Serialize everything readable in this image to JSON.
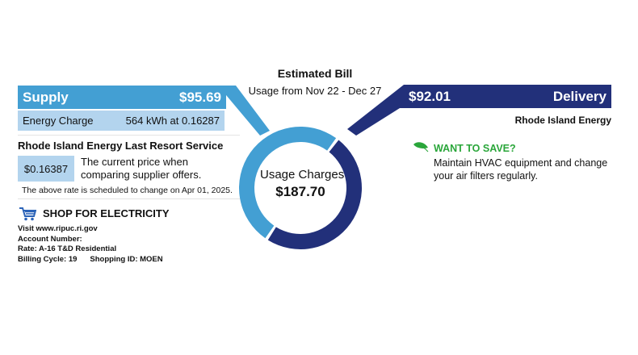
{
  "header": {
    "title": "Estimated Bill",
    "subtitle": "Usage from Nov 22 - Dec 27"
  },
  "supply": {
    "label": "Supply",
    "amount": "$95.69",
    "value": 95.69,
    "color": "#439fd3",
    "energy_charge_label": "Energy Charge",
    "energy_charge_value": "564 kWh at 0.16287",
    "last_resort_title": "Rhode Island Energy Last Resort Service",
    "price": "$0.16387",
    "price_desc_line1": "The current price when",
    "price_desc_line2": "comparing supplier offers.",
    "rate_note": "The above rate is scheduled to change on Apr 01, 2025."
  },
  "shop": {
    "title": "SHOP FOR ELECTRICITY",
    "icon": "cart-icon",
    "visit": "Visit www.ripuc.ri.gov",
    "account": "Account Number:",
    "rate": "Rate: A-16 T&D Residential",
    "billing_cycle": "Billing Cycle: 19",
    "shopping_id": "Shopping ID: MOEN"
  },
  "donut": {
    "center_label": "Usage Charges",
    "center_value": "$187.70"
  },
  "delivery": {
    "label": "Delivery",
    "amount": "$92.01",
    "value": 92.01,
    "color": "#22307a",
    "provider": "Rhode Island Energy"
  },
  "save": {
    "title": "WANT TO SAVE?",
    "icon": "leaf-icon",
    "color": "#2aa63a",
    "line1": "Maintain HVAC equipment and change",
    "line2": "your air filters regularly."
  }
}
